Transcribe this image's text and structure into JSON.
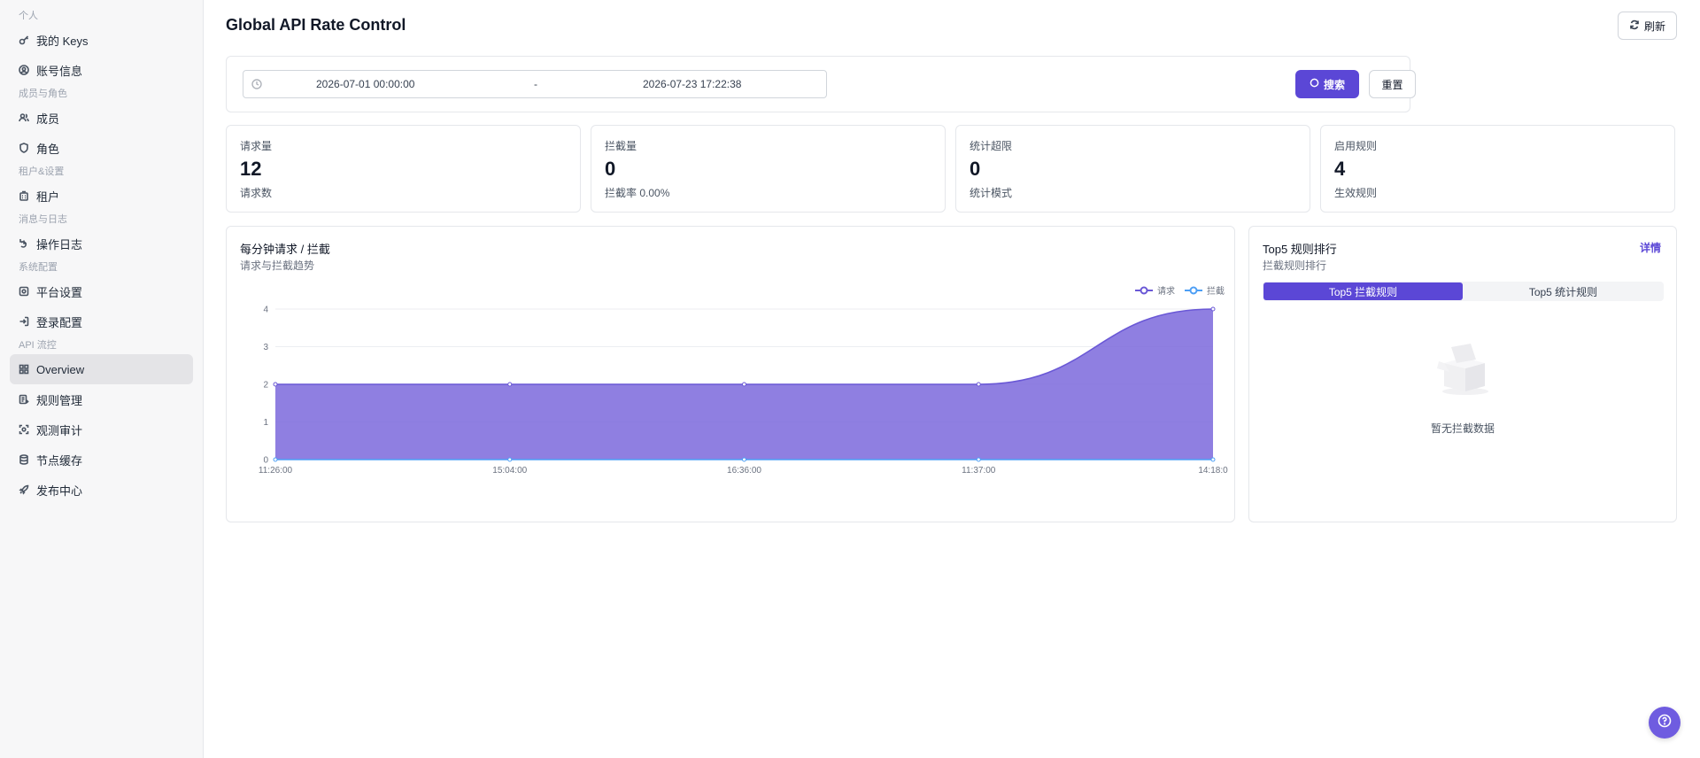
{
  "sidebar": {
    "sections": [
      {
        "label": "个人",
        "items": [
          {
            "label": "我的 Keys",
            "icon": "key-icon"
          },
          {
            "label": "账号信息",
            "icon": "user-circle-icon"
          }
        ]
      },
      {
        "label": "成员与角色",
        "items": [
          {
            "label": "成员",
            "icon": "users-icon"
          },
          {
            "label": "角色",
            "icon": "shield-icon"
          }
        ]
      },
      {
        "label": "租户&设置",
        "items": [
          {
            "label": "租户",
            "icon": "building-icon"
          }
        ]
      },
      {
        "label": "消息与日志",
        "items": [
          {
            "label": "操作日志",
            "icon": "log-icon"
          }
        ]
      },
      {
        "label": "系统配置",
        "items": [
          {
            "label": "平台设置",
            "icon": "settings-icon"
          },
          {
            "label": "登录配置",
            "icon": "login-icon"
          }
        ]
      },
      {
        "label": "API 流控",
        "items": [
          {
            "label": "Overview",
            "icon": "grid-icon",
            "active": true
          },
          {
            "label": "规则管理",
            "icon": "rules-icon"
          },
          {
            "label": "观测审计",
            "icon": "scan-icon"
          },
          {
            "label": "节点缓存",
            "icon": "database-icon"
          },
          {
            "label": "发布中心",
            "icon": "rocket-icon"
          }
        ]
      }
    ]
  },
  "header": {
    "title": "Global API Rate Control",
    "refresh_label": "刷新"
  },
  "filter": {
    "start": "2026-07-01 00:00:00",
    "separator": "-",
    "end": "2026-07-23 17:22:38",
    "search_label": "搜索",
    "reset_label": "重置"
  },
  "stats": [
    {
      "label": "请求量",
      "value": "12",
      "sub": "请求数"
    },
    {
      "label": "拦截量",
      "value": "0",
      "sub": "拦截率 0.00%"
    },
    {
      "label": "统计超限",
      "value": "0",
      "sub": "统计模式"
    },
    {
      "label": "启用规则",
      "value": "4",
      "sub": "生效规则"
    }
  ],
  "chart_card": {
    "title": "每分钟请求 / 拦截",
    "subtitle": "请求与拦截趋势"
  },
  "chart_data": {
    "type": "area",
    "categories": [
      "11:26:00",
      "15:04:00",
      "16:36:00",
      "11:37:00",
      "14:18:0"
    ],
    "series": [
      {
        "name": "请求",
        "values": [
          2,
          2,
          2,
          2,
          4
        ],
        "color": "#6a58d6"
      },
      {
        "name": "拦截",
        "values": [
          0,
          0,
          0,
          0,
          0
        ],
        "color": "#4d9ff5"
      }
    ],
    "ylim": [
      0,
      4
    ],
    "yticks": [
      0,
      1,
      2,
      3,
      4
    ],
    "grid": true,
    "legend": "top-right"
  },
  "top_card": {
    "title": "Top5 规则排行",
    "subtitle": "拦截规则排行",
    "detail_label": "详情",
    "tabs": [
      "Top5 拦截规则",
      "Top5 统计规则"
    ],
    "empty_text": "暂无拦截数据"
  }
}
